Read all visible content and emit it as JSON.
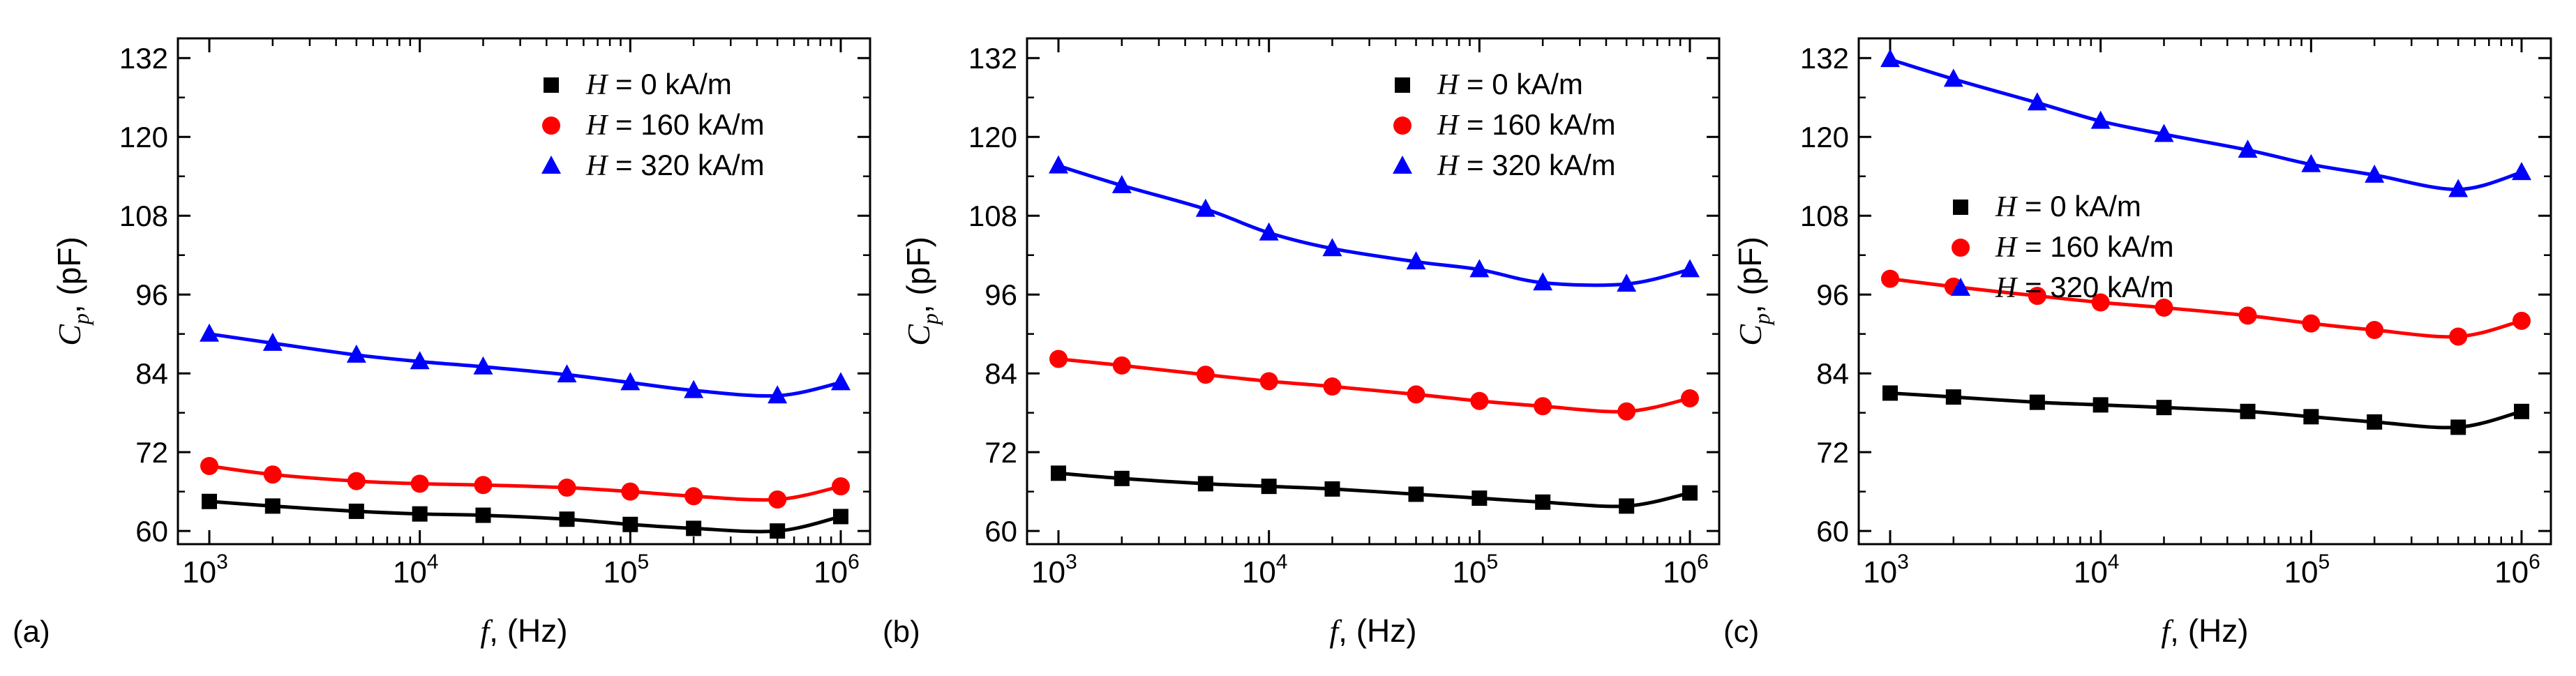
{
  "chart_data": [
    {
      "panel": "(a)",
      "type": "line",
      "xscale": "log",
      "xlim": [
        1000,
        1000000
      ],
      "ylim": [
        58,
        135
      ],
      "yticks": [
        60,
        72,
        84,
        96,
        108,
        120,
        132
      ],
      "xticks": [
        {
          "base": "10",
          "exp": "3"
        },
        {
          "base": "10",
          "exp": "4"
        },
        {
          "base": "10",
          "exp": "5"
        },
        {
          "base": "10",
          "exp": "6"
        }
      ],
      "xlabel_var": "f",
      "xlabel_unit": ", (Hz)",
      "ylabel_var": "C",
      "ylabel_sub": "p",
      "ylabel_unit": ", (pF)",
      "legend_pos": "top-right",
      "x": [
        1000,
        2000,
        5000,
        10000,
        20000,
        50000,
        100000,
        200000,
        500000,
        1000000
      ],
      "series": [
        {
          "var": "H",
          "name": " = 0 kA/m",
          "marker": "square",
          "color": "#000000",
          "values": [
            64.5,
            63.8,
            63.0,
            62.6,
            62.4,
            61.8,
            61.0,
            60.4,
            60.0,
            62.2
          ]
        },
        {
          "var": "H",
          "name": " = 160 kA/m",
          "marker": "circle",
          "color": "#ff0000",
          "values": [
            69.9,
            68.6,
            67.6,
            67.2,
            67.0,
            66.6,
            66.0,
            65.3,
            64.8,
            66.8
          ]
        },
        {
          "var": "H",
          "name": " = 320 kA/m",
          "marker": "triangle",
          "color": "#0000ff",
          "values": [
            90.0,
            88.6,
            86.8,
            85.8,
            85.0,
            83.8,
            82.6,
            81.4,
            80.6,
            82.6
          ]
        }
      ]
    },
    {
      "panel": "(b)",
      "type": "line",
      "xscale": "log",
      "xlim": [
        1000,
        1000000
      ],
      "ylim": [
        58,
        135
      ],
      "yticks": [
        60,
        72,
        84,
        96,
        108,
        120,
        132
      ],
      "xticks": [
        {
          "base": "10",
          "exp": "3"
        },
        {
          "base": "10",
          "exp": "4"
        },
        {
          "base": "10",
          "exp": "5"
        },
        {
          "base": "10",
          "exp": "6"
        }
      ],
      "xlabel_var": "f",
      "xlabel_unit": ", (Hz)",
      "ylabel_var": "C",
      "ylabel_sub": "p",
      "ylabel_unit": ", (pF)",
      "legend_pos": "top-right",
      "x": [
        1000,
        2000,
        5000,
        10000,
        20000,
        50000,
        100000,
        200000,
        500000,
        1000000
      ],
      "series": [
        {
          "var": "H",
          "name": " = 0 kA/m",
          "marker": "square",
          "color": "#000000",
          "values": [
            68.8,
            68.0,
            67.2,
            66.8,
            66.4,
            65.6,
            65.0,
            64.4,
            63.8,
            65.8
          ]
        },
        {
          "var": "H",
          "name": " = 160 kA/m",
          "marker": "circle",
          "color": "#ff0000",
          "values": [
            86.2,
            85.2,
            83.8,
            82.8,
            82.0,
            80.8,
            79.8,
            79.0,
            78.2,
            80.2
          ]
        },
        {
          "var": "H",
          "name": " = 320 kA/m",
          "marker": "triangle",
          "color": "#0000ff",
          "values": [
            115.6,
            112.6,
            109.0,
            105.4,
            103.0,
            101.0,
            99.8,
            97.8,
            97.6,
            99.8
          ]
        }
      ]
    },
    {
      "panel": "(c)",
      "type": "line",
      "xscale": "log",
      "xlim": [
        1000,
        1000000
      ],
      "ylim": [
        58,
        135
      ],
      "yticks": [
        60,
        72,
        84,
        96,
        108,
        120,
        132
      ],
      "xticks": [
        {
          "base": "10",
          "exp": "3"
        },
        {
          "base": "10",
          "exp": "4"
        },
        {
          "base": "10",
          "exp": "5"
        },
        {
          "base": "10",
          "exp": "6"
        }
      ],
      "xlabel_var": "f",
      "xlabel_unit": ", (Hz)",
      "ylabel_var": "C",
      "ylabel_sub": "p",
      "ylabel_unit": ", (pF)",
      "legend_pos": "middle-left",
      "x": [
        1000,
        2000,
        5000,
        10000,
        20000,
        50000,
        100000,
        200000,
        500000,
        1000000
      ],
      "series": [
        {
          "var": "H",
          "name": " = 0 kA/m",
          "marker": "square",
          "color": "#000000",
          "values": [
            81.0,
            80.4,
            79.6,
            79.2,
            78.8,
            78.2,
            77.4,
            76.6,
            75.8,
            78.2
          ]
        },
        {
          "var": "H",
          "name": " = 160 kA/m",
          "marker": "circle",
          "color": "#ff0000",
          "values": [
            98.4,
            97.2,
            95.8,
            94.8,
            94.0,
            92.8,
            91.6,
            90.6,
            89.6,
            92.0
          ]
        },
        {
          "var": "H",
          "name": " = 320 kA/m",
          "marker": "triangle",
          "color": "#0000ff",
          "values": [
            131.8,
            128.8,
            125.2,
            122.4,
            120.4,
            118.0,
            115.8,
            114.2,
            112.0,
            114.6
          ]
        }
      ]
    }
  ]
}
